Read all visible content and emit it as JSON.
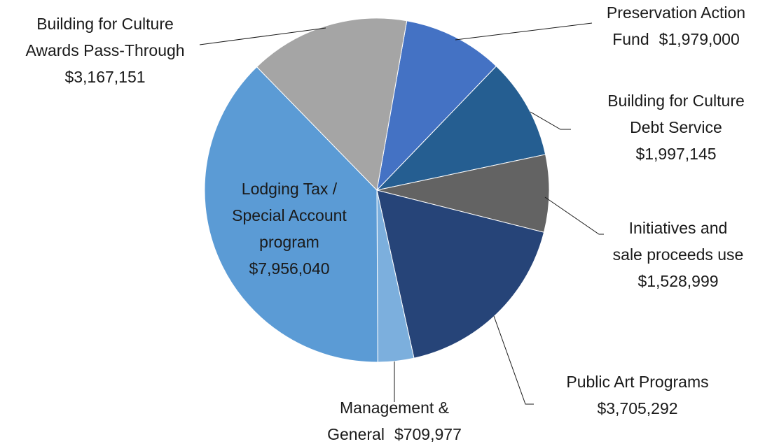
{
  "chart_data": {
    "type": "pie",
    "categories": [
      [
        "Preservation Action",
        "Fund"
      ],
      [
        "Building for Culture",
        "Debt Service"
      ],
      [
        "Initiatives and",
        "sale proceeds use"
      ],
      [
        "Public Art Programs"
      ],
      [
        "Management &",
        "General"
      ],
      [
        "Lodging Tax /",
        "Special Account",
        "program"
      ],
      [
        "Building for Culture",
        "Awards Pass-Through"
      ]
    ],
    "values": [
      1979000,
      1997145,
      1528999,
      3705292,
      709977,
      7956040,
      3167151
    ],
    "value_labels": [
      "$1,979,000",
      "$1,997,145",
      "$1,528,999",
      "$3,705,292",
      "$709,977",
      "$7,956,040",
      "$3,167,151"
    ],
    "colors": [
      "#4472c4",
      "#255e91",
      "#636363",
      "#264478",
      "#7cafdd",
      "#5b9bd5",
      "#a5a5a5"
    ]
  }
}
